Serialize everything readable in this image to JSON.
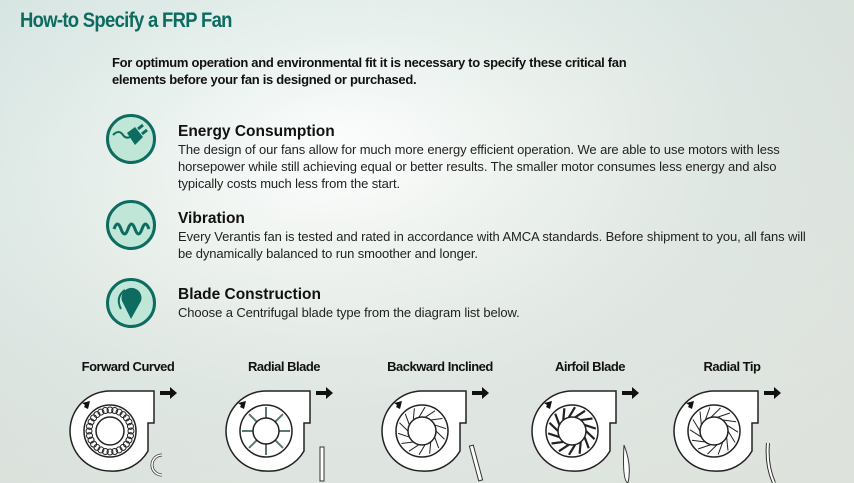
{
  "title": "How-to Specify a FRP Fan",
  "intro": "For optimum operation and environmental fit it is necessary to specify these critical fan elements before your fan is designed or purchased.",
  "colors": {
    "brand": "#0d6b5f",
    "icon_fill": "#bfe6d6"
  },
  "sections": [
    {
      "icon": "power-plug-icon",
      "heading": "Energy Consumption",
      "body": "The design of our fans allow for much more energy efficient operation.  We are able to use motors with less horsepower while still achieving equal or better results. The smaller motor consumes less energy and also typically costs much less from the start."
    },
    {
      "icon": "vibration-wave-icon",
      "heading": "Vibration",
      "body": "Every Verantis  fan is tested and rated in accordance with AMCA standards. Before shipment to you, all fans will be dynamically balanced to run smoother and longer."
    },
    {
      "icon": "blade-icon",
      "heading": "Blade Construction",
      "body": "Choose a Centrifugal blade type from the diagram list below."
    }
  ],
  "fans": [
    {
      "label": "Forward Curved",
      "type": "forward"
    },
    {
      "label": "Radial Blade",
      "type": "radial"
    },
    {
      "label": "Backward Inclined",
      "type": "backward"
    },
    {
      "label": "Airfoil Blade",
      "type": "airfoil"
    },
    {
      "label": "Radial Tip",
      "type": "tip"
    }
  ]
}
